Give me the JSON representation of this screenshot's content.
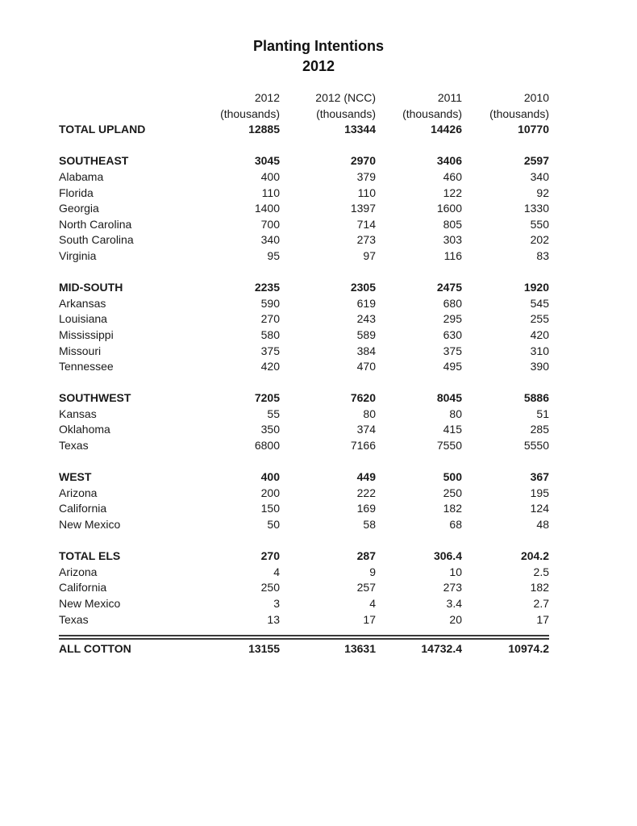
{
  "page": {
    "title_line1": "Planting Intentions",
    "title_line2": "2012"
  },
  "table": {
    "unit_label": "(thousands)",
    "columns": [
      "2012",
      "2012 (NCC)",
      "2011",
      "2010"
    ],
    "rows": [
      {
        "type": "total",
        "label": "TOTAL UPLAND",
        "values": [
          "12885",
          "13344",
          "14426",
          "10770"
        ]
      },
      {
        "type": "spacer"
      },
      {
        "type": "section",
        "label": "SOUTHEAST",
        "values": [
          "3045",
          "2970",
          "3406",
          "2597"
        ]
      },
      {
        "type": "state",
        "label": "Alabama",
        "values": [
          "400",
          "379",
          "460",
          "340"
        ]
      },
      {
        "type": "state",
        "label": "Florida",
        "values": [
          "110",
          "110",
          "122",
          "92"
        ]
      },
      {
        "type": "state",
        "label": "Georgia",
        "values": [
          "1400",
          "1397",
          "1600",
          "1330"
        ]
      },
      {
        "type": "state",
        "label": "North Carolina",
        "values": [
          "700",
          "714",
          "805",
          "550"
        ]
      },
      {
        "type": "state",
        "label": "South Carolina",
        "values": [
          "340",
          "273",
          "303",
          "202"
        ]
      },
      {
        "type": "state",
        "label": "Virginia",
        "values": [
          "95",
          "97",
          "116",
          "83"
        ]
      },
      {
        "type": "spacer"
      },
      {
        "type": "section",
        "label": "MID-SOUTH",
        "values": [
          "2235",
          "2305",
          "2475",
          "1920"
        ]
      },
      {
        "type": "state",
        "label": "Arkansas",
        "values": [
          "590",
          "619",
          "680",
          "545"
        ]
      },
      {
        "type": "state",
        "label": "Louisiana",
        "values": [
          "270",
          "243",
          "295",
          "255"
        ]
      },
      {
        "type": "state",
        "label": "Mississippi",
        "values": [
          "580",
          "589",
          "630",
          "420"
        ]
      },
      {
        "type": "state",
        "label": "Missouri",
        "values": [
          "375",
          "384",
          "375",
          "310"
        ]
      },
      {
        "type": "state",
        "label": "Tennessee",
        "values": [
          "420",
          "470",
          "495",
          "390"
        ]
      },
      {
        "type": "spacer"
      },
      {
        "type": "section",
        "label": "SOUTHWEST",
        "values": [
          "7205",
          "7620",
          "8045",
          "5886"
        ]
      },
      {
        "type": "state",
        "label": "Kansas",
        "values": [
          "55",
          "80",
          "80",
          "51"
        ]
      },
      {
        "type": "state",
        "label": "Oklahoma",
        "values": [
          "350",
          "374",
          "415",
          "285"
        ]
      },
      {
        "type": "state",
        "label": "Texas",
        "values": [
          "6800",
          "7166",
          "7550",
          "5550"
        ]
      },
      {
        "type": "spacer"
      },
      {
        "type": "section",
        "label": "WEST",
        "values": [
          "400",
          "449",
          "500",
          "367"
        ]
      },
      {
        "type": "state",
        "label": "Arizona",
        "values": [
          "200",
          "222",
          "250",
          "195"
        ]
      },
      {
        "type": "state",
        "label": "California",
        "values": [
          "150",
          "169",
          "182",
          "124"
        ]
      },
      {
        "type": "state",
        "label": "New Mexico",
        "values": [
          "50",
          "58",
          "68",
          "48"
        ]
      },
      {
        "type": "spacer"
      },
      {
        "type": "section",
        "label": "TOTAL ELS",
        "values": [
          "270",
          "287",
          "306.4",
          "204.2"
        ]
      },
      {
        "type": "state",
        "label": "Arizona",
        "values": [
          "4",
          "9",
          "10",
          "2.5"
        ]
      },
      {
        "type": "state",
        "label": "California",
        "values": [
          "250",
          "257",
          "273",
          "182"
        ]
      },
      {
        "type": "state",
        "label": "New Mexico",
        "values": [
          "3",
          "4",
          "3.4",
          "2.7"
        ]
      },
      {
        "type": "state",
        "label": "Texas",
        "values": [
          "13",
          "17",
          "20",
          "17"
        ]
      },
      {
        "type": "spacer-small"
      },
      {
        "type": "grand",
        "label": "ALL COTTON",
        "values": [
          "13155",
          "13631",
          "14732.4",
          "10974.2"
        ]
      }
    ]
  }
}
